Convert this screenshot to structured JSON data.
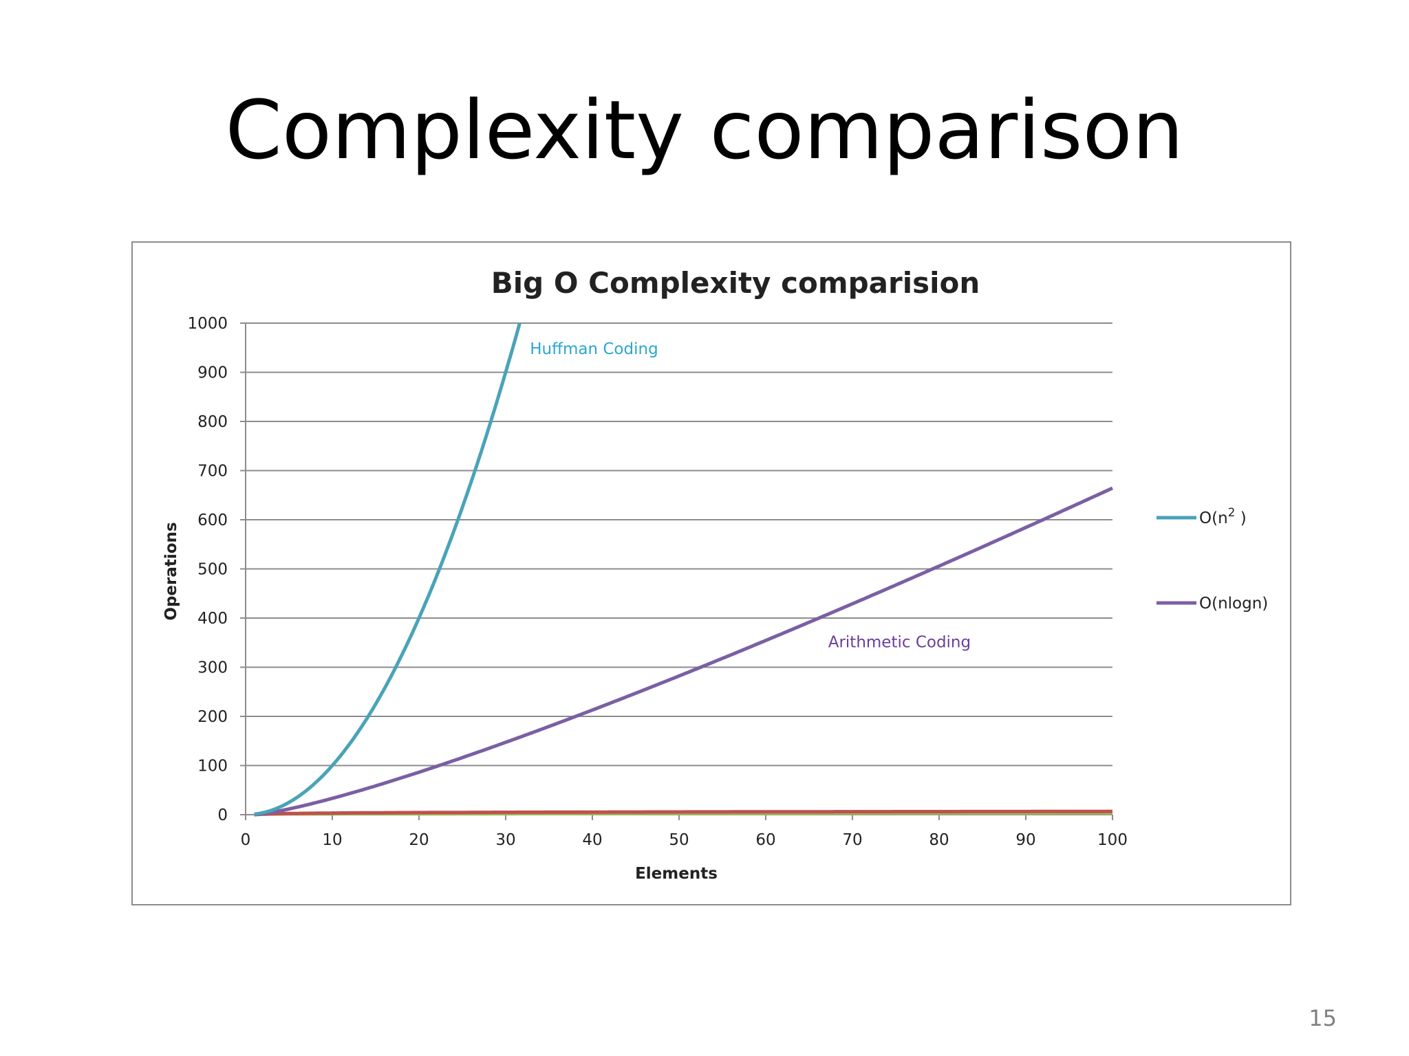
{
  "slide": {
    "title": "Complexity comparison",
    "page_number": "15"
  },
  "colors": {
    "on2": "#4aa3b8",
    "onlogn": "#7b5fa3",
    "red": "#c0504d",
    "green": "#9bbb59",
    "grid": "#8c8c8c",
    "huffman_label": "#2aa7d0",
    "arithmetic_label": "#6a3f9a"
  },
  "chart_data": {
    "type": "line",
    "title": "Big O Complexity comparision",
    "xlabel": "Elements",
    "ylabel": "Operations",
    "xlim": [
      0,
      100
    ],
    "ylim": [
      0,
      1000
    ],
    "xticks": [
      0,
      10,
      20,
      30,
      40,
      50,
      60,
      70,
      80,
      90,
      100
    ],
    "yticks": [
      0,
      100,
      200,
      300,
      400,
      500,
      600,
      700,
      800,
      900,
      1000
    ],
    "grid": true,
    "legend_position": "right",
    "series": [
      {
        "name": "O(n",
        "name_sup": "2",
        "name_suffix": " )",
        "formula": "n^2",
        "legend": true
      },
      {
        "name": "O(nlogn)",
        "formula": "n*log2(n)",
        "legend": true
      },
      {
        "formula": "log2(n)",
        "legend": false
      },
      {
        "formula": "n/50",
        "legend": false
      }
    ],
    "annotations": [
      {
        "text": "Huffman Coding",
        "x": 32.8,
        "y": 948,
        "series": 0
      },
      {
        "text": "Arithmetic Coding",
        "x": 67.2,
        "y": 352,
        "series": 1
      }
    ]
  }
}
